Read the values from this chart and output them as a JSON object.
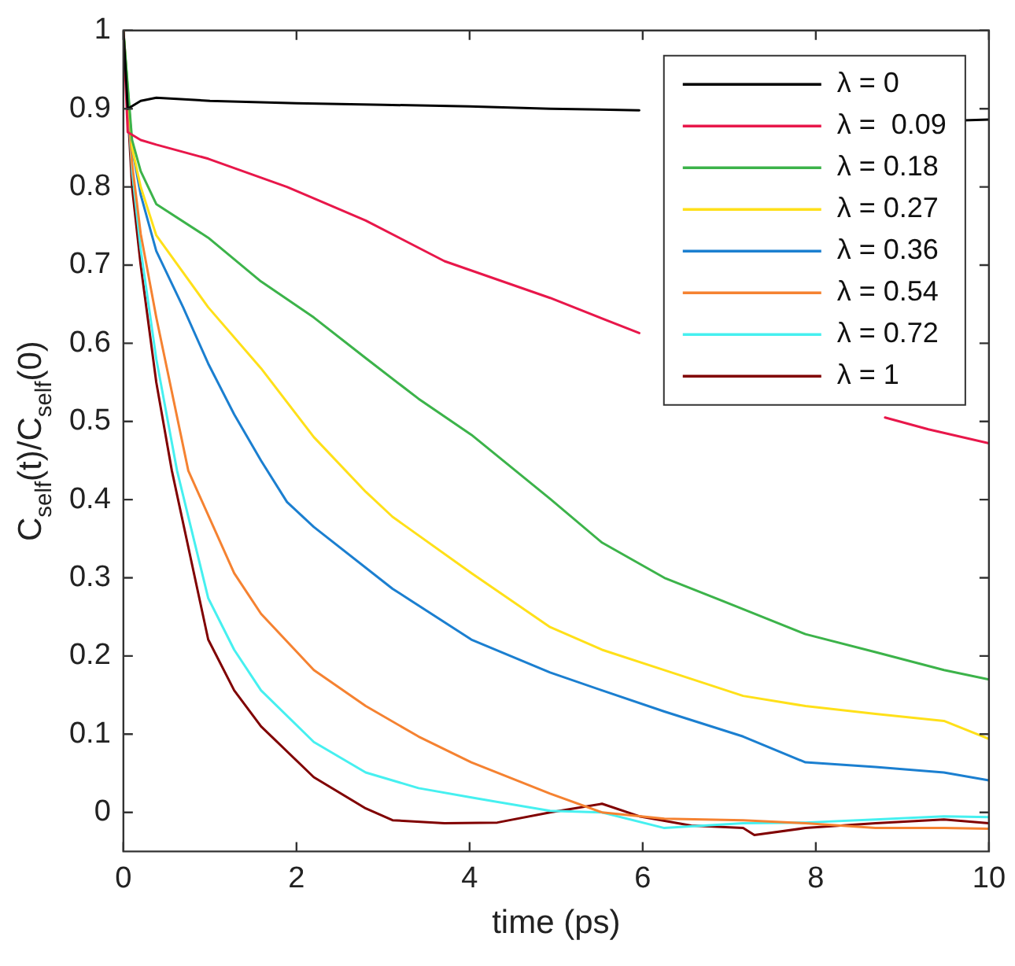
{
  "chart_data": {
    "type": "line",
    "xlabel": "time (ps)",
    "ylabel": "C$_{self}$(t)/C$_{self}$(0)",
    "xlim": [
      0,
      10
    ],
    "xticks": [
      0,
      2,
      4,
      6,
      8,
      10
    ],
    "ylim": [
      -0.05,
      1
    ],
    "yticks": [
      0,
      0.1,
      0.2,
      0.3,
      0.4,
      0.5,
      0.6,
      0.7,
      0.8,
      0.9,
      1
    ],
    "grid": false,
    "legend": "top right",
    "marker": "none",
    "line_style": "solid",
    "series": [
      {
        "name": "λ = 0",
        "color": "#000000",
        "x": [
          0,
          0.05,
          0.2,
          0.38,
          1.0,
          2.0,
          3.0,
          4.0,
          4.93,
          5.96,
          7.5,
          9.7,
          10
        ],
        "values": [
          1,
          0.9,
          0.91,
          0.914,
          0.91,
          0.907,
          0.905,
          0.903,
          0.9,
          0.898,
          null,
          0.885,
          0.886
        ]
      },
      {
        "name": "λ =  0.09",
        "color": "#e8174a",
        "x": [
          0,
          0.05,
          0.2,
          0.38,
          0.98,
          1.89,
          2.8,
          3.71,
          4.93,
          5.96,
          7.5,
          8.8,
          9.3,
          10
        ],
        "values": [
          1,
          0.87,
          0.86,
          0.854,
          0.836,
          0.8,
          0.757,
          0.705,
          0.658,
          0.613,
          null,
          0.505,
          0.49,
          0.472
        ]
      },
      {
        "name": "λ = 0.18",
        "color": "#3cb34a",
        "x": [
          0,
          0.1,
          0.2,
          0.38,
          0.98,
          1.59,
          2.2,
          2.8,
          3.41,
          4.02,
          4.93,
          5.53,
          6.25,
          7.16,
          7.88,
          8.69,
          9.48,
          10
        ],
        "values": [
          1,
          0.86,
          0.82,
          0.778,
          0.735,
          0.679,
          0.633,
          0.581,
          0.529,
          0.483,
          0.401,
          0.345,
          0.3,
          0.26,
          0.228,
          0.205,
          0.182,
          0.17
        ]
      },
      {
        "name": "λ = 0.27",
        "color": "#ffe019",
        "x": [
          0,
          0.1,
          0.2,
          0.38,
          0.98,
          1.59,
          2.2,
          2.8,
          3.11,
          4.02,
          4.93,
          5.53,
          6.25,
          7.16,
          7.88,
          8.69,
          9.48,
          10
        ],
        "values": [
          1,
          0.85,
          0.8,
          0.738,
          0.646,
          0.568,
          0.48,
          0.41,
          0.378,
          0.306,
          0.237,
          0.208,
          0.182,
          0.149,
          0.136,
          0.126,
          0.117,
          0.094
        ]
      },
      {
        "name": "λ = 0.36",
        "color": "#1b7fd0",
        "x": [
          0,
          0.1,
          0.2,
          0.38,
          0.69,
          0.98,
          1.28,
          1.59,
          1.89,
          2.2,
          3.11,
          4.02,
          4.93,
          5.53,
          6.25,
          7.16,
          7.88,
          8.69,
          9.48,
          10
        ],
        "values": [
          1,
          0.85,
          0.79,
          0.718,
          0.646,
          0.574,
          0.509,
          0.45,
          0.397,
          0.365,
          0.286,
          0.221,
          0.179,
          0.156,
          0.129,
          0.097,
          0.064,
          0.058,
          0.051,
          0.041
        ]
      },
      {
        "name": "λ = 0.54",
        "color": "#f58231",
        "x": [
          0,
          0.1,
          0.2,
          0.38,
          0.75,
          1.28,
          1.59,
          2.2,
          2.8,
          3.41,
          4.02,
          4.93,
          5.53,
          6.25,
          7.16,
          7.88,
          8.69,
          9.48,
          10
        ],
        "values": [
          1,
          0.83,
          0.74,
          0.633,
          0.437,
          0.306,
          0.254,
          0.182,
          0.136,
          0.097,
          0.064,
          0.024,
          0.0,
          -0.008,
          -0.01,
          -0.014,
          -0.02,
          -0.02,
          -0.021
        ]
      },
      {
        "name": "λ = 0.72",
        "color": "#46f0f0",
        "x": [
          0,
          0.1,
          0.2,
          0.38,
          0.62,
          0.98,
          1.28,
          1.59,
          2.2,
          2.8,
          3.41,
          4.02,
          4.93,
          5.53,
          6.25,
          7.16,
          7.88,
          8.69,
          9.48,
          10
        ],
        "values": [
          1,
          0.82,
          0.72,
          0.58,
          0.437,
          0.274,
          0.208,
          0.156,
          0.09,
          0.051,
          0.031,
          0.019,
          0.002,
          0.0,
          -0.02,
          -0.014,
          -0.013,
          -0.009,
          -0.005,
          -0.006
        ]
      },
      {
        "name": "λ = 1",
        "color": "#800000",
        "x": [
          0,
          0.1,
          0.2,
          0.38,
          0.56,
          0.98,
          1.28,
          1.59,
          2.2,
          2.8,
          3.11,
          3.71,
          4.32,
          4.93,
          5.53,
          5.96,
          6.56,
          7.16,
          7.29,
          7.88,
          8.69,
          9.48,
          10
        ],
        "values": [
          1,
          0.8,
          0.7,
          0.55,
          0.437,
          0.221,
          0.156,
          0.11,
          0.045,
          0.005,
          -0.01,
          -0.014,
          -0.013,
          0.0,
          0.011,
          -0.005,
          -0.017,
          -0.02,
          -0.029,
          -0.02,
          -0.014,
          -0.009,
          -0.014
        ]
      }
    ]
  }
}
